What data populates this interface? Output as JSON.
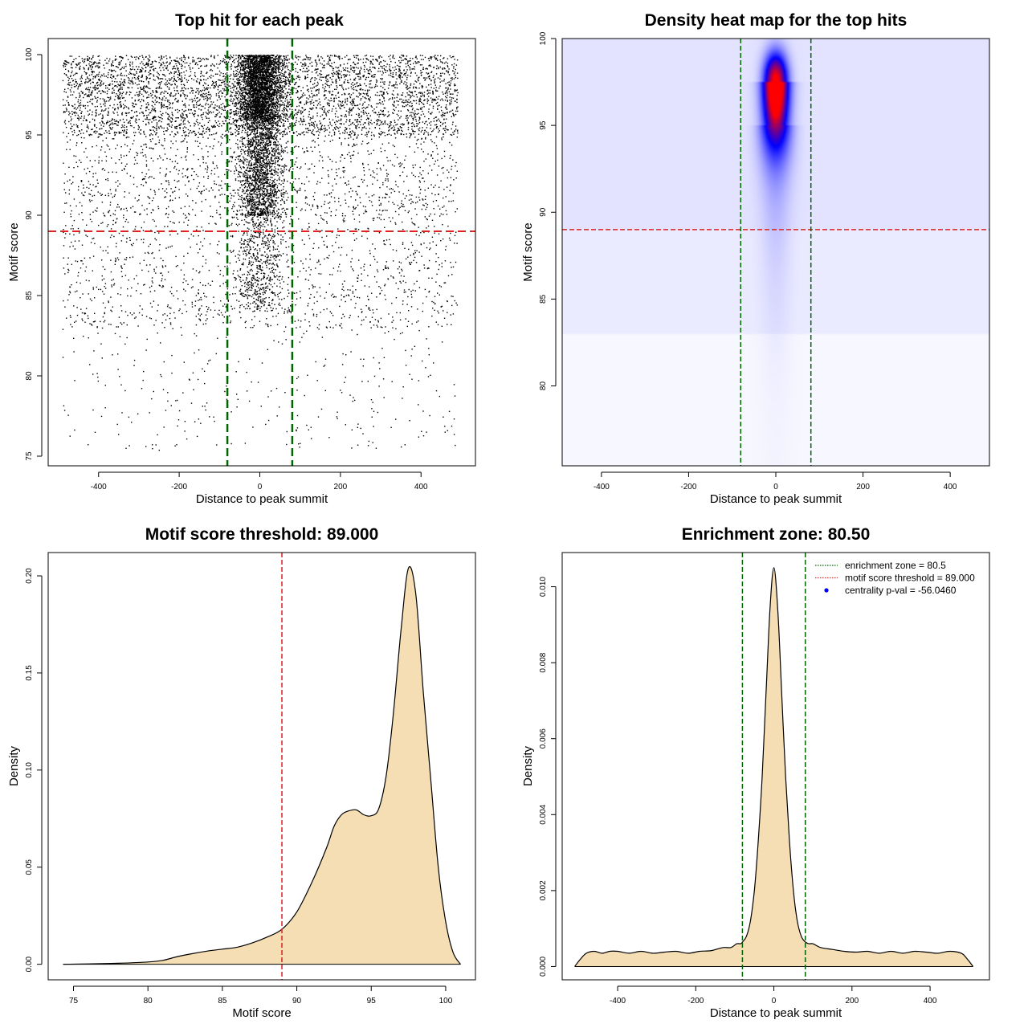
{
  "chart_data": [
    {
      "type": "scatter",
      "title": "Top hit for each peak",
      "xlabel": "Distance to peak summit",
      "ylabel": "Motif score",
      "xlim": [
        -525,
        535
      ],
      "ylim": [
        74.4,
        101.0
      ],
      "xticks": [
        -400,
        -200,
        0,
        200,
        400
      ],
      "yticks": [
        75,
        80,
        85,
        90,
        95,
        100
      ],
      "xtick_labels": [
        "-400",
        "-200",
        "0",
        "200",
        "400"
      ],
      "ytick_labels": [
        "75",
        "80",
        "85",
        "90",
        "95",
        "100"
      ],
      "threshold": 89.0,
      "enrichment_zone": [
        -80.5,
        80.5
      ],
      "threshold_color": "#dd2222",
      "zone_color": "#006400",
      "point_color": "#000000",
      "distribution": {
        "x_range": [
          -490,
          490
        ],
        "center_fraction": 0.42,
        "center_sd": 28,
        "score_range": [
          75.4,
          100.0
        ],
        "score_mode": 97.5
      }
    },
    {
      "type": "heatmap",
      "title": "Density heat map for the top hits",
      "xlabel": "Distance to peak summit",
      "ylabel": "Motif score",
      "xlim": [
        -490,
        490
      ],
      "ylim": [
        75.4,
        100.0
      ],
      "xticks": [
        -400,
        -200,
        0,
        200,
        400
      ],
      "yticks": [
        80,
        85,
        90,
        95,
        100
      ],
      "xtick_labels": [
        "-400",
        "-200",
        "0",
        "200",
        "400"
      ],
      "ytick_labels": [
        "80",
        "85",
        "90",
        "95",
        "100"
      ],
      "threshold": 89.0,
      "enrichment_zone": [
        -80.5,
        80.5
      ],
      "peak": {
        "x": 0,
        "y": 97.5
      },
      "colors": [
        "#ffffff",
        "#0000ff",
        "#ff0000"
      ],
      "threshold_color": "#dd2222",
      "zone_color": "#006400"
    },
    {
      "type": "area",
      "title": "Motif score threshold: 89.000",
      "xlabel": "Motif score",
      "ylabel": "Density",
      "xlim": [
        73.3,
        102.0
      ],
      "ylim": [
        -0.008,
        0.212
      ],
      "xticks": [
        75,
        80,
        85,
        90,
        95,
        100
      ],
      "yticks": [
        0.0,
        0.05,
        0.1,
        0.15,
        0.2
      ],
      "xtick_labels": [
        "75",
        "80",
        "85",
        "90",
        "95",
        "100"
      ],
      "ytick_labels": [
        "0.00",
        "0.05",
        "0.10",
        "0.15",
        "0.20"
      ],
      "fill_color": "#f5deb3",
      "line_color": "#000000",
      "threshold": 89.0,
      "threshold_color": "#dd2222",
      "x": [
        74.3,
        76,
        78,
        80,
        81,
        82,
        83,
        84,
        85,
        86,
        87,
        88,
        89,
        90,
        91,
        92,
        92.5,
        93,
        93.5,
        94,
        94.5,
        95,
        95.5,
        96,
        96.5,
        97,
        97.5,
        98,
        98.5,
        99,
        99.5,
        100,
        100.5,
        101
      ],
      "y": [
        0.0,
        0.0002,
        0.0005,
        0.0012,
        0.002,
        0.004,
        0.0055,
        0.0068,
        0.0078,
        0.0088,
        0.011,
        0.014,
        0.018,
        0.027,
        0.042,
        0.06,
        0.071,
        0.077,
        0.079,
        0.0795,
        0.077,
        0.0765,
        0.08,
        0.097,
        0.13,
        0.172,
        0.204,
        0.19,
        0.14,
        0.095,
        0.05,
        0.022,
        0.006,
        0.0
      ]
    },
    {
      "type": "area",
      "title": "Enrichment zone: 80.50",
      "xlabel": "Distance to peak summit",
      "ylabel": "Density",
      "xlim": [
        -542,
        552
      ],
      "ylim": [
        -0.00035,
        0.0109
      ],
      "xticks": [
        -400,
        -200,
        0,
        200,
        400
      ],
      "yticks": [
        0.0,
        0.002,
        0.004,
        0.006,
        0.008,
        0.01
      ],
      "xtick_labels": [
        "-400",
        "-200",
        "0",
        "200",
        "400"
      ],
      "ytick_labels": [
        "0.000",
        "0.002",
        "0.004",
        "0.006",
        "0.008",
        "0.010"
      ],
      "fill_color": "#f5deb3",
      "line_color": "#000000",
      "enrichment_zone": [
        -80.5,
        80.5
      ],
      "zone_color": "#006400",
      "x": [
        -510,
        -495,
        -480,
        -460,
        -440,
        -420,
        -400,
        -370,
        -340,
        -310,
        -280,
        -250,
        -220,
        -190,
        -160,
        -130,
        -110,
        -95,
        -85,
        -80,
        -70,
        -60,
        -50,
        -40,
        -30,
        -20,
        -10,
        0,
        10,
        20,
        30,
        40,
        50,
        60,
        70,
        80,
        90,
        100,
        120,
        150,
        180,
        210,
        240,
        270,
        300,
        330,
        360,
        390,
        420,
        450,
        480,
        495,
        510
      ],
      "y": [
        0.0,
        0.0002,
        0.00035,
        0.0004,
        0.00035,
        0.0004,
        0.0004,
        0.00035,
        0.0004,
        0.00035,
        0.00038,
        0.0004,
        0.00035,
        0.0004,
        0.00042,
        0.0005,
        0.0005,
        0.0006,
        0.0006,
        0.00065,
        0.0008,
        0.0012,
        0.002,
        0.0033,
        0.005,
        0.0072,
        0.0094,
        0.0105,
        0.0094,
        0.0072,
        0.005,
        0.0033,
        0.002,
        0.0012,
        0.0008,
        0.00065,
        0.0006,
        0.0006,
        0.0005,
        0.00045,
        0.0004,
        0.00038,
        0.0004,
        0.00035,
        0.0004,
        0.00035,
        0.0004,
        0.00038,
        0.00035,
        0.0004,
        0.00035,
        0.0002,
        0.0
      ],
      "legend": [
        {
          "label": "enrichment zone = 80.5",
          "style": "dotted-line",
          "color": "#006400"
        },
        {
          "label": "motif score threshold = 89.000",
          "style": "dotted-line",
          "color": "#dd2222"
        },
        {
          "label": "centrality p-val = -56.0460",
          "style": "dot",
          "color": "#0000ff"
        }
      ],
      "legend_position": "top-right"
    }
  ]
}
